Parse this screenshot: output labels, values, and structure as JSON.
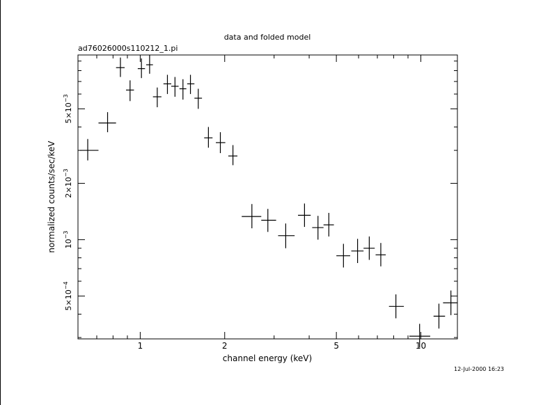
{
  "chart_data": {
    "type": "scatter",
    "title": "data and folded model",
    "subtitle": "ad76026000s110212_1.pi",
    "xlabel": "channel energy (keV)",
    "ylabel": "normalized counts/sec/keV",
    "xscale": "log",
    "yscale": "log",
    "xlim": [
      0.6,
      13.5
    ],
    "ylim": [
      0.000295,
      0.0097
    ],
    "x_ticks": [
      {
        "value": 1,
        "label": "1"
      },
      {
        "value": 2,
        "label": "2"
      },
      {
        "value": 5,
        "label": "5"
      },
      {
        "value": 10,
        "label": "10"
      }
    ],
    "y_ticks": [
      {
        "value": 0.0005,
        "mantissa": "5×10",
        "exp": "−4"
      },
      {
        "value": 0.001,
        "mantissa": "10",
        "exp": "−3"
      },
      {
        "value": 0.002,
        "mantissa": "2×10",
        "exp": "−3"
      },
      {
        "value": 0.005,
        "mantissa": "5×10",
        "exp": "−3"
      }
    ],
    "series": [
      {
        "points": [
          {
            "x": 0.65,
            "xlo": 0.61,
            "xhi": 0.71,
            "y": 0.003,
            "ylo": 0.00265,
            "yhi": 0.00345
          },
          {
            "x": 0.765,
            "xlo": 0.71,
            "xhi": 0.82,
            "y": 0.0042,
            "ylo": 0.00375,
            "yhi": 0.0048
          },
          {
            "x": 0.85,
            "xlo": 0.82,
            "xhi": 0.88,
            "y": 0.0083,
            "ylo": 0.0074,
            "yhi": 0.0094
          },
          {
            "x": 0.92,
            "xlo": 0.89,
            "xhi": 0.95,
            "y": 0.0063,
            "ylo": 0.0055,
            "yhi": 0.0071
          },
          {
            "x": 1.01,
            "xlo": 0.98,
            "xhi": 1.04,
            "y": 0.0082,
            "ylo": 0.0073,
            "yhi": 0.0093
          },
          {
            "x": 1.08,
            "xlo": 1.05,
            "xhi": 1.11,
            "y": 0.0086,
            "ylo": 0.0077,
            "yhi": 0.0097
          },
          {
            "x": 1.15,
            "xlo": 1.11,
            "xhi": 1.19,
            "y": 0.0058,
            "ylo": 0.0051,
            "yhi": 0.0065
          },
          {
            "x": 1.25,
            "xlo": 1.21,
            "xhi": 1.29,
            "y": 0.0068,
            "ylo": 0.006,
            "yhi": 0.0076
          },
          {
            "x": 1.33,
            "xlo": 1.29,
            "xhi": 1.37,
            "y": 0.0066,
            "ylo": 0.0058,
            "yhi": 0.0074
          },
          {
            "x": 1.42,
            "xlo": 1.38,
            "xhi": 1.46,
            "y": 0.0064,
            "ylo": 0.0056,
            "yhi": 0.0072
          },
          {
            "x": 1.51,
            "xlo": 1.47,
            "xhi": 1.56,
            "y": 0.0068,
            "ylo": 0.006,
            "yhi": 0.0076
          },
          {
            "x": 1.61,
            "xlo": 1.56,
            "xhi": 1.66,
            "y": 0.0057,
            "ylo": 0.005,
            "yhi": 0.0064
          },
          {
            "x": 1.75,
            "xlo": 1.69,
            "xhi": 1.81,
            "y": 0.0035,
            "ylo": 0.0031,
            "yhi": 0.004
          },
          {
            "x": 1.93,
            "xlo": 1.86,
            "xhi": 2.01,
            "y": 0.0033,
            "ylo": 0.0029,
            "yhi": 0.00375
          },
          {
            "x": 2.14,
            "xlo": 2.06,
            "xhi": 2.22,
            "y": 0.0028,
            "ylo": 0.0025,
            "yhi": 0.0032
          },
          {
            "x": 2.5,
            "xlo": 2.3,
            "xhi": 2.7,
            "y": 0.00133,
            "ylo": 0.00115,
            "yhi": 0.00155
          },
          {
            "x": 2.85,
            "xlo": 2.7,
            "xhi": 3.05,
            "y": 0.00127,
            "ylo": 0.0011,
            "yhi": 0.00146
          },
          {
            "x": 3.3,
            "xlo": 3.1,
            "xhi": 3.55,
            "y": 0.00105,
            "ylo": 0.0009,
            "yhi": 0.00122
          },
          {
            "x": 3.85,
            "xlo": 3.65,
            "xhi": 4.05,
            "y": 0.00135,
            "ylo": 0.00117,
            "yhi": 0.00156
          },
          {
            "x": 4.3,
            "xlo": 4.1,
            "xhi": 4.5,
            "y": 0.00116,
            "ylo": 0.001,
            "yhi": 0.00134
          },
          {
            "x": 4.7,
            "xlo": 4.5,
            "xhi": 4.9,
            "y": 0.0012,
            "ylo": 0.00104,
            "yhi": 0.00139
          },
          {
            "x": 5.3,
            "xlo": 5.0,
            "xhi": 5.6,
            "y": 0.00082,
            "ylo": 0.00071,
            "yhi": 0.00095
          },
          {
            "x": 5.95,
            "xlo": 5.65,
            "xhi": 6.25,
            "y": 0.00087,
            "ylo": 0.00075,
            "yhi": 0.00101
          },
          {
            "x": 6.55,
            "xlo": 6.25,
            "xhi": 6.85,
            "y": 0.0009,
            "ylo": 0.00078,
            "yhi": 0.00104
          },
          {
            "x": 7.2,
            "xlo": 6.9,
            "xhi": 7.5,
            "y": 0.00083,
            "ylo": 0.00072,
            "yhi": 0.00096
          },
          {
            "x": 8.15,
            "xlo": 7.7,
            "xhi": 8.7,
            "y": 0.00044,
            "ylo": 0.00038,
            "yhi": 0.00051
          },
          {
            "x": 9.9,
            "xlo": 9.1,
            "xhi": 10.8,
            "y": 0.000305,
            "ylo": 0.000265,
            "yhi": 0.000355
          },
          {
            "x": 11.6,
            "xlo": 11.1,
            "xhi": 12.2,
            "y": 0.00039,
            "ylo": 0.000335,
            "yhi": 0.000455
          },
          {
            "x": 12.8,
            "xlo": 12.0,
            "xhi": 13.6,
            "y": 0.00046,
            "ylo": 0.000395,
            "yhi": 0.000535
          }
        ]
      }
    ],
    "grid": false,
    "legend": "none"
  },
  "timestamp": "12-Jul-2000 16:23"
}
